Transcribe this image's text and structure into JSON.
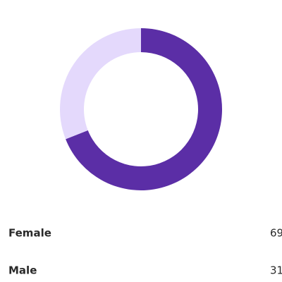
{
  "chart_data": {
    "type": "donut",
    "categories": [
      "Female",
      "Male"
    ],
    "values": [
      69,
      31
    ],
    "colors": [
      "#5b2ea6",
      "#e4d9fc"
    ]
  }
}
